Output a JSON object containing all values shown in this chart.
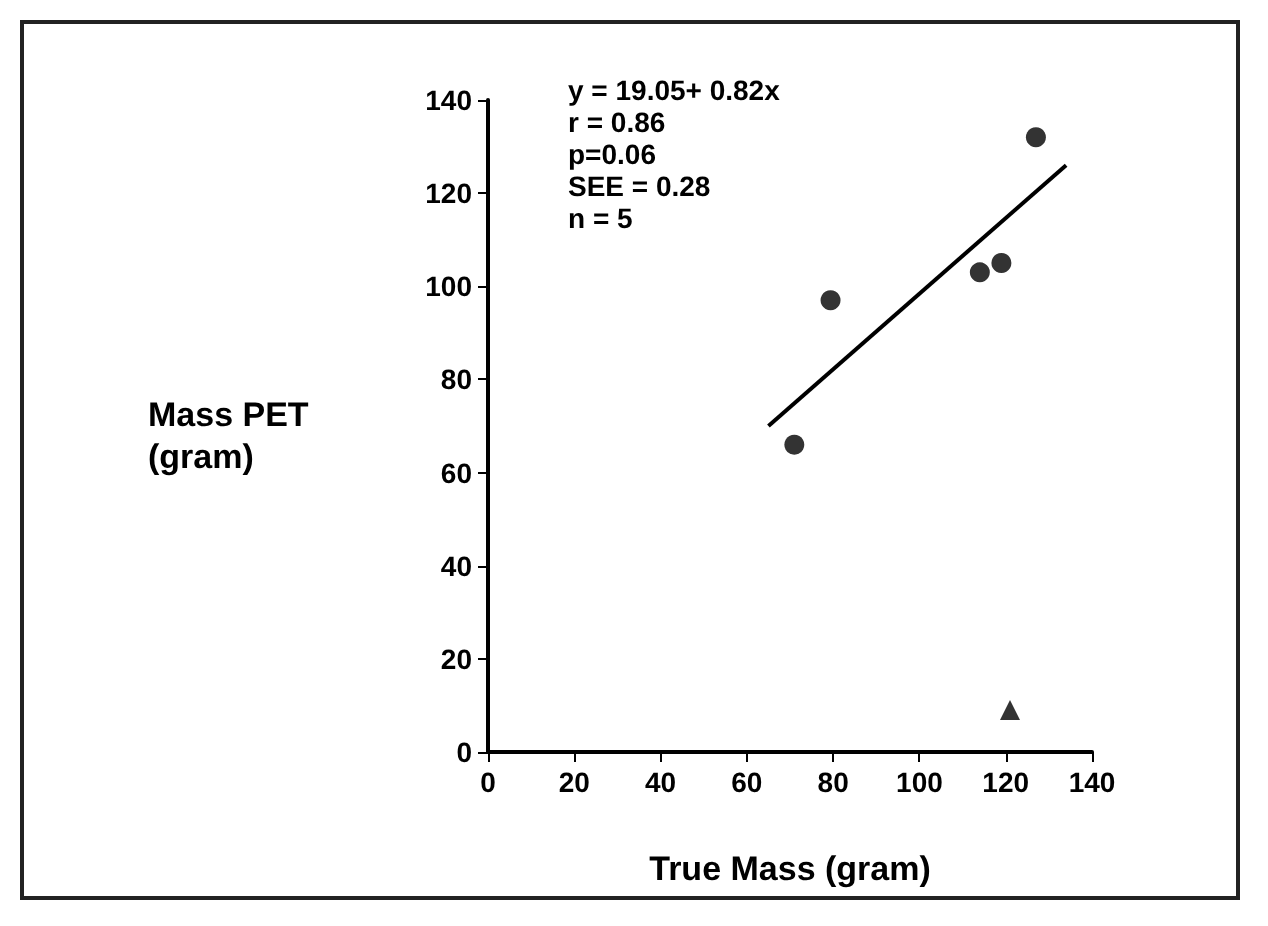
{
  "chart_data": {
    "type": "scatter",
    "xlabel": "True Mass (gram)",
    "ylabel": "Mass PET (gram)",
    "annotations": [
      "y = 19.05+ 0.82x",
      "r = 0.86",
      "p=0.06",
      "SEE = 0.28",
      "n = 5"
    ],
    "xlim": [
      0,
      140
    ],
    "xticks": [
      0,
      20,
      40,
      60,
      80,
      100,
      120,
      140
    ],
    "ylim": [
      0,
      140
    ],
    "yticks": [
      0,
      20,
      40,
      60,
      80,
      100,
      120,
      140
    ],
    "grid": false,
    "series": [
      {
        "marker": "circle",
        "color": "#000000",
        "x": [
          71,
          79.4,
          114,
          119,
          127
        ],
        "values": [
          66,
          97,
          103,
          105,
          132
        ]
      },
      {
        "marker": "triangle",
        "color": "#000000",
        "x": [
          121
        ],
        "values": [
          9
        ]
      },
      {
        "type": "line",
        "marker": "none",
        "line_style": "solid",
        "color": "#000000",
        "x": [
          65,
          134
        ],
        "values": [
          70,
          126
        ]
      }
    ]
  }
}
